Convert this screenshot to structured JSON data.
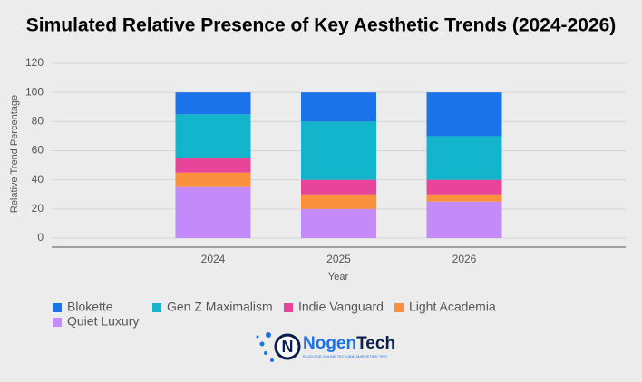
{
  "chart_data": {
    "type": "stacked_bar",
    "title": "Simulated Relative Presence of Key Aesthetic Trends (2024-2026)",
    "x_label": "Year",
    "y_label": "Relative Trend Percentage",
    "categories": [
      "2024",
      "2025",
      "2026"
    ],
    "series": [
      {
        "name": "Blokette",
        "color": "#1a73e8",
        "values": [
          15,
          20,
          30
        ]
      },
      {
        "name": "Gen Z Maximalism",
        "color": "#12b5cb",
        "values": [
          30,
          40,
          30
        ]
      },
      {
        "name": "Indie Vanguard",
        "color": "#e8449a",
        "values": [
          10,
          10,
          10
        ]
      },
      {
        "name": "Light Academia",
        "color": "#fa903e",
        "values": [
          10,
          10,
          5
        ]
      },
      {
        "name": "Quiet Luxury",
        "color": "#c58af9",
        "values": [
          35,
          20,
          25
        ]
      }
    ],
    "ylim": [
      0,
      120
    ],
    "yticks": [
      0,
      20,
      40,
      60,
      80,
      100,
      120
    ],
    "grid": true,
    "legend": "bottom"
  },
  "logo": {
    "name_first": "Nogen",
    "name_second": "Tech",
    "tagline": "BLOG FOR ONLINE TECH AND MARKETING TIPS"
  }
}
